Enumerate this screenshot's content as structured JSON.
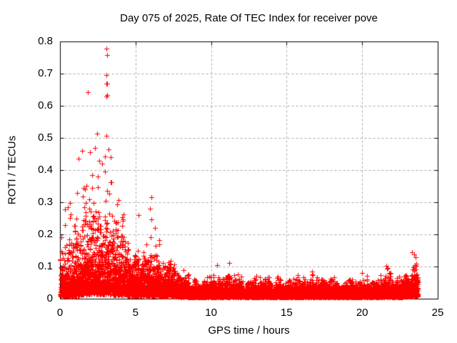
{
  "figure": {
    "background": "#ffffff",
    "axis_color": "#000000",
    "text_color": "#000000"
  },
  "chart_data": {
    "type": "scatter",
    "title": "Day 075 of 2025, Rate Of TEC Index for receiver pove",
    "xlabel": "GPS time / hours",
    "ylabel": "ROTI / TECUs",
    "xlim": [
      0,
      25
    ],
    "ylim": [
      0,
      0.8
    ],
    "xtick_values": [
      0,
      5,
      10,
      15,
      20,
      25
    ],
    "xtick_labels": [
      "0",
      "5",
      "10",
      "15",
      "20",
      "25"
    ],
    "ytick_values": [
      0,
      0.1,
      0.2,
      0.3,
      0.4,
      0.5,
      0.6,
      0.7,
      0.8
    ],
    "ytick_labels": [
      "0",
      "0.1",
      "0.2",
      "0.3",
      "0.4",
      "0.5",
      "0.6",
      "0.7",
      "0.8"
    ],
    "grid": {
      "show": true,
      "color": "#a9a9a9",
      "dash": [
        3,
        3
      ]
    },
    "legend": {
      "show": false
    },
    "marker": {
      "shape": "plus",
      "color": "#ff0000",
      "size": 7,
      "line_width": 1
    },
    "series_name": "ROTI",
    "time_coverage_hours": [
      0.02,
      23.7
    ],
    "hourly_max_approx": [
      0.3,
      0.64,
      0.51,
      0.78,
      0.44,
      0.31,
      0.32,
      0.17,
      0.12,
      0.085,
      0.112,
      0.11,
      0.082,
      0.08,
      0.082,
      0.08,
      0.082,
      0.09,
      0.088,
      0.085,
      0.08,
      0.105,
      0.085,
      0.148
    ],
    "outliers": [
      [
        0.32,
        0.23
      ],
      [
        0.5,
        0.285
      ],
      [
        0.68,
        0.298
      ],
      [
        0.72,
        0.262
      ],
      [
        1.45,
        0.46
      ],
      [
        1.84,
        0.642
      ],
      [
        2.0,
        0.455
      ],
      [
        2.3,
        0.47
      ],
      [
        2.44,
        0.514
      ],
      [
        2.6,
        0.43
      ],
      [
        2.8,
        0.42
      ],
      [
        3.06,
        0.63
      ],
      [
        3.07,
        0.777
      ],
      [
        3.08,
        0.695
      ],
      [
        3.09,
        0.668
      ],
      [
        3.09,
        0.507
      ],
      [
        3.1,
        0.67
      ],
      [
        3.11,
        0.633
      ],
      [
        3.12,
        0.757
      ],
      [
        3.2,
        0.465
      ],
      [
        3.35,
        0.44
      ],
      [
        5.2,
        0.26
      ],
      [
        5.95,
        0.28
      ],
      [
        6.05,
        0.316
      ],
      [
        6.07,
        0.246
      ],
      [
        6.3,
        0.22
      ],
      [
        10.4,
        0.105
      ],
      [
        11.2,
        0.112
      ],
      [
        21.6,
        0.103
      ],
      [
        23.3,
        0.145
      ],
      [
        23.45,
        0.138
      ],
      [
        23.55,
        0.128
      ]
    ],
    "generation": {
      "seed": 7503,
      "dt_hours": 0.0083333,
      "points_per_step": 3,
      "segment_fields": [
        "t_start",
        "t_end",
        "base",
        "mean_excess",
        "cap"
      ],
      "segments": [
        [
          0.02,
          0.5,
          0.006,
          0.04,
          0.3
        ],
        [
          0.5,
          1.0,
          0.006,
          0.045,
          0.3
        ],
        [
          1.0,
          1.5,
          0.008,
          0.055,
          0.46
        ],
        [
          1.5,
          2.5,
          0.012,
          0.08,
          0.52
        ],
        [
          2.5,
          3.5,
          0.012,
          0.085,
          0.5
        ],
        [
          3.5,
          4.2,
          0.01,
          0.065,
          0.44
        ],
        [
          4.2,
          5.0,
          0.008,
          0.05,
          0.27
        ],
        [
          5.0,
          5.6,
          0.008,
          0.045,
          0.22
        ],
        [
          5.6,
          6.6,
          0.007,
          0.04,
          0.3
        ],
        [
          6.6,
          7.6,
          0.006,
          0.03,
          0.17
        ],
        [
          7.6,
          8.5,
          0.005,
          0.022,
          0.12
        ],
        [
          8.5,
          10.2,
          0.004,
          0.016,
          0.085
        ],
        [
          10.2,
          11.6,
          0.004,
          0.018,
          0.112
        ],
        [
          11.6,
          16.3,
          0.004,
          0.015,
          0.082
        ],
        [
          16.3,
          18.3,
          0.004,
          0.016,
          0.09
        ],
        [
          18.3,
          20.8,
          0.004,
          0.015,
          0.088
        ],
        [
          20.8,
          21.2,
          0.004,
          0.015,
          0.08
        ],
        [
          21.2,
          21.95,
          0.005,
          0.018,
          0.105
        ],
        [
          21.95,
          22.7,
          0.004,
          0.016,
          0.085
        ],
        [
          22.7,
          23.35,
          0.006,
          0.024,
          0.135
        ],
        [
          23.35,
          23.7,
          0.006,
          0.03,
          0.148
        ]
      ]
    }
  }
}
